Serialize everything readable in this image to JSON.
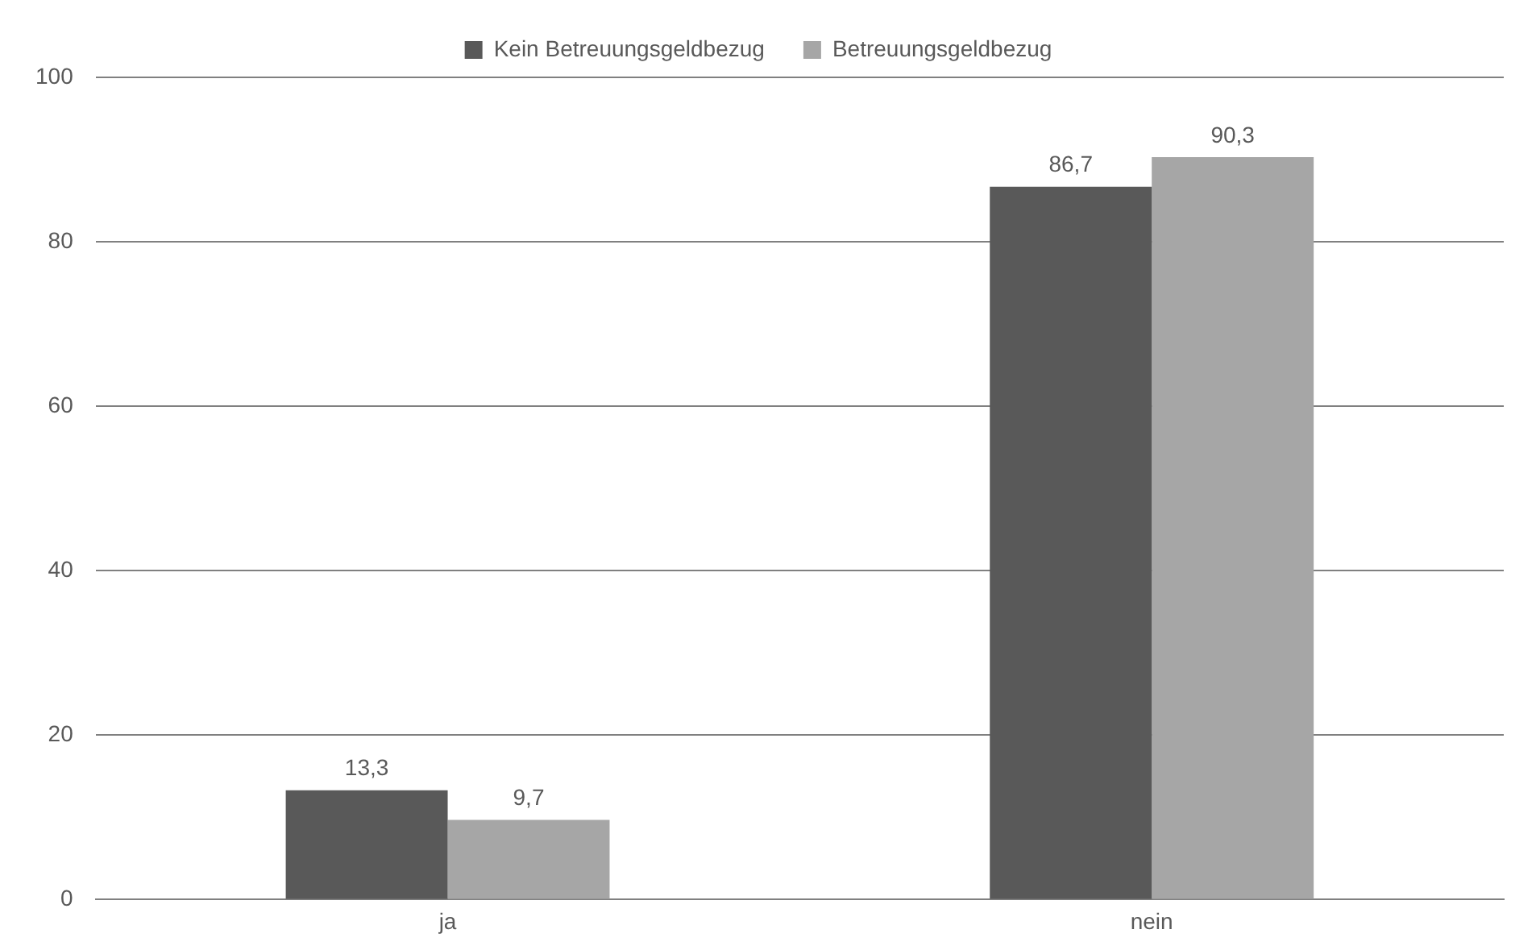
{
  "chart_data": {
    "type": "bar",
    "categories": [
      "ja",
      "nein"
    ],
    "series": [
      {
        "name": "Kein Betreuungsgeldbezug",
        "color": "#595959",
        "values": [
          13.3,
          86.7
        ],
        "value_labels": [
          "13,3",
          "86,7"
        ]
      },
      {
        "name": "Betreuungsgeldbezug",
        "color": "#a6a6a6",
        "values": [
          9.7,
          90.3
        ],
        "value_labels": [
          "9,7",
          "90,3"
        ]
      }
    ],
    "ylim": [
      0,
      100
    ],
    "yticks": [
      0,
      20,
      40,
      60,
      80,
      100
    ],
    "grid": "y",
    "legend": "top"
  }
}
